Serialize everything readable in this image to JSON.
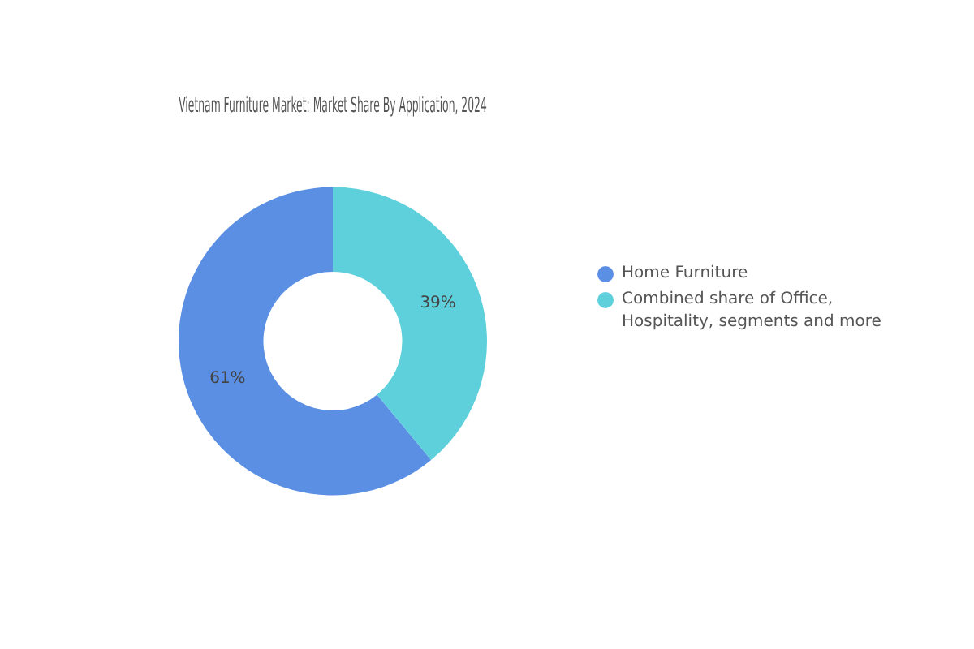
{
  "chart_data": {
    "type": "donut",
    "title": "Vietnam Furniture Market: Market Share By Application, 2024",
    "categories": [
      "Home Furniture",
      "Combined share of Office, Hospitality, segments and more"
    ],
    "values": [
      61,
      39
    ],
    "colors": [
      "#5b8fe3",
      "#5dd0dc"
    ],
    "value_labels": [
      "61%",
      "39%"
    ],
    "legend": "right"
  }
}
